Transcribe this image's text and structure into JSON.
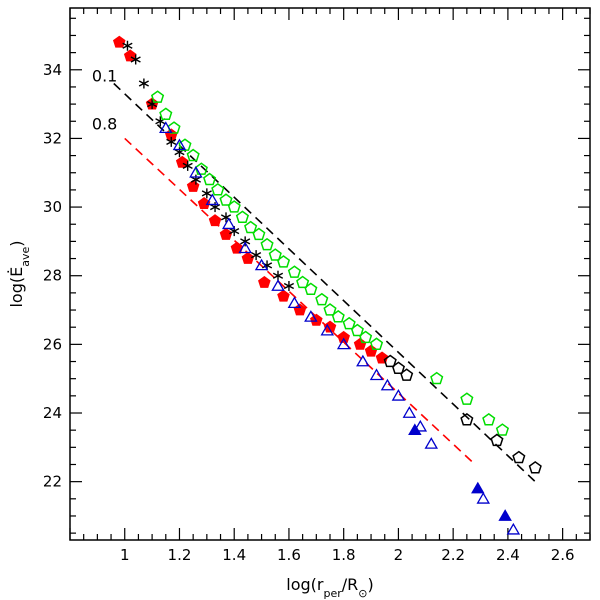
{
  "chart_data": {
    "type": "scatter",
    "xlabel": "log(r_per/R_⊙)",
    "ylabel": "log(Ė_ave)",
    "xlim": [
      0.8,
      2.7
    ],
    "ylim": [
      20.3,
      35.8
    ],
    "x_ticks": [
      1,
      1.2,
      1.4,
      1.6,
      1.8,
      2,
      2.2,
      2.4,
      2.6
    ],
    "x_tick_labels": [
      "1",
      "1.2",
      "1.4",
      "1.6",
      "1.8",
      "2",
      "2.2",
      "2.4",
      "2.6"
    ],
    "y_ticks": [
      22,
      24,
      26,
      28,
      30,
      32,
      34
    ],
    "y_tick_labels": [
      "22",
      "24",
      "26",
      "28",
      "30",
      "32",
      "34"
    ],
    "annotations": [
      {
        "text": "0.1",
        "x": 0.88,
        "y": 33.8
      },
      {
        "text": "0.8",
        "x": 0.88,
        "y": 32.4
      }
    ],
    "lines": [
      {
        "name": "0.1",
        "color": "#000000",
        "style": "dashed",
        "x": [
          0.96,
          2.5
        ],
        "y": [
          33.6,
          22.0
        ]
      },
      {
        "name": "0.8",
        "color": "#ff0000",
        "style": "dashed",
        "x": [
          1.0,
          2.28
        ],
        "y": [
          32.0,
          22.5
        ]
      }
    ],
    "series": [
      {
        "name": "red filled pentagons",
        "marker": "pentagon",
        "color": "#ff0000",
        "filled": true,
        "x": [
          0.98,
          1.02,
          1.1,
          1.17,
          1.21,
          1.25,
          1.29,
          1.33,
          1.37,
          1.41,
          1.45,
          1.51,
          1.58,
          1.64,
          1.7,
          1.75,
          1.8,
          1.86,
          1.9,
          1.94
        ],
        "y": [
          34.8,
          34.4,
          33.0,
          32.1,
          31.3,
          30.6,
          30.1,
          29.6,
          29.2,
          28.8,
          28.5,
          27.8,
          27.4,
          27.0,
          26.7,
          26.5,
          26.2,
          26.0,
          25.8,
          25.6
        ]
      },
      {
        "name": "black asterisks",
        "marker": "asterisk",
        "color": "#000000",
        "filled": false,
        "x": [
          1.01,
          1.04,
          1.07,
          1.1,
          1.13,
          1.17,
          1.2,
          1.23,
          1.26,
          1.3,
          1.33,
          1.37,
          1.4,
          1.44,
          1.48,
          1.52,
          1.56,
          1.6
        ],
        "y": [
          34.7,
          34.3,
          33.6,
          33.0,
          32.5,
          31.9,
          31.6,
          31.2,
          30.8,
          30.4,
          30.0,
          29.7,
          29.3,
          29.0,
          28.6,
          28.3,
          28.0,
          27.7
        ]
      },
      {
        "name": "green open pentagons",
        "marker": "pentagon",
        "color": "#00dd00",
        "filled": false,
        "x": [
          1.12,
          1.15,
          1.18,
          1.22,
          1.25,
          1.28,
          1.31,
          1.34,
          1.37,
          1.4,
          1.43,
          1.46,
          1.49,
          1.52,
          1.55,
          1.58,
          1.62,
          1.65,
          1.68,
          1.72,
          1.75,
          1.78,
          1.82,
          1.85,
          1.88,
          1.92,
          2.14,
          2.25,
          2.33,
          2.38
        ],
        "y": [
          33.2,
          32.7,
          32.3,
          31.8,
          31.5,
          31.1,
          30.8,
          30.5,
          30.2,
          30.0,
          29.7,
          29.4,
          29.2,
          28.9,
          28.6,
          28.4,
          28.1,
          27.8,
          27.6,
          27.3,
          27.0,
          26.8,
          26.6,
          26.4,
          26.2,
          26.0,
          25.0,
          24.4,
          23.8,
          23.5
        ]
      },
      {
        "name": "blue open triangles",
        "marker": "triangle",
        "color": "#0000cc",
        "filled": false,
        "x": [
          1.15,
          1.2,
          1.26,
          1.32,
          1.38,
          1.44,
          1.5,
          1.56,
          1.62,
          1.68,
          1.74,
          1.8,
          1.87,
          1.92,
          1.96,
          2.0,
          2.04,
          2.08,
          2.12,
          2.31,
          2.42
        ],
        "y": [
          32.3,
          31.8,
          31.0,
          30.2,
          29.5,
          28.8,
          28.3,
          27.7,
          27.2,
          26.8,
          26.4,
          26.0,
          25.5,
          25.1,
          24.8,
          24.5,
          24.0,
          23.6,
          23.1,
          21.5,
          20.6
        ]
      },
      {
        "name": "blue filled triangles",
        "marker": "triangle",
        "color": "#0000cc",
        "filled": true,
        "x": [
          2.06,
          2.29,
          2.39
        ],
        "y": [
          23.5,
          21.8,
          21.0
        ]
      },
      {
        "name": "black open pentagons",
        "marker": "pentagon",
        "color": "#000000",
        "filled": false,
        "x": [
          1.97,
          2.0,
          2.03,
          2.25,
          2.36,
          2.44,
          2.5
        ],
        "y": [
          25.5,
          25.3,
          25.1,
          23.8,
          23.2,
          22.7,
          22.4
        ]
      }
    ]
  }
}
